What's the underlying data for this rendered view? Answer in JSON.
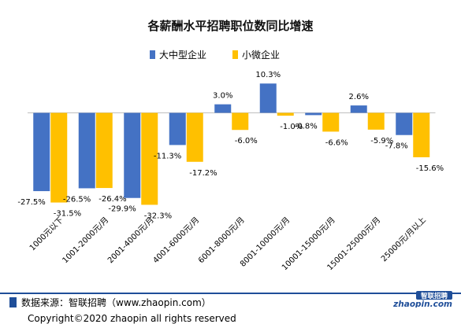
{
  "chart_data": {
    "type": "bar",
    "title": "各薪酬水平招聘职位数同比增速",
    "categories": [
      "1000元以下",
      "1001-2000元/月",
      "2001-4000元/月",
      "4001-6000元/月",
      "6001-8000元/月",
      "8001-10000元/月",
      "10001-15000元/月",
      "15001-25000元/月",
      "25000元/月以上"
    ],
    "series": [
      {
        "name": "大中型企业",
        "color": "#4472c4",
        "values": [
          -27.5,
          -26.5,
          -29.9,
          -11.3,
          3.0,
          10.3,
          -0.8,
          2.6,
          -7.8
        ],
        "labels": [
          "-27.5%",
          "-26.5%",
          "-29.9%",
          "-11.3%",
          "3.0%",
          "10.3%",
          "-0.8%",
          "2.6%",
          "-7.8%"
        ]
      },
      {
        "name": "小微企业",
        "color": "#ffc000",
        "values": [
          -31.5,
          -26.4,
          -32.3,
          -17.2,
          -6.0,
          -1.0,
          -6.6,
          -5.9,
          -15.6
        ],
        "labels": [
          "-31.5%",
          "-26.4%",
          "-32.3%",
          "-17.2%",
          "-6.0%",
          "-1.0%",
          "-6.6%",
          "-5.9%",
          "-15.6%"
        ]
      }
    ],
    "unit": "%",
    "ylim": [
      -35,
      12
    ],
    "grid": false,
    "legend": "top"
  },
  "footer": {
    "source": "数据来源：智联招聘（www.zhaopin.com）",
    "copyright": "Copyright©2020 zhaopin all rights reserved"
  },
  "logo": {
    "mark_text": "智联招聘",
    "text": "zhaopin.com",
    "color": "#1f4e99"
  }
}
